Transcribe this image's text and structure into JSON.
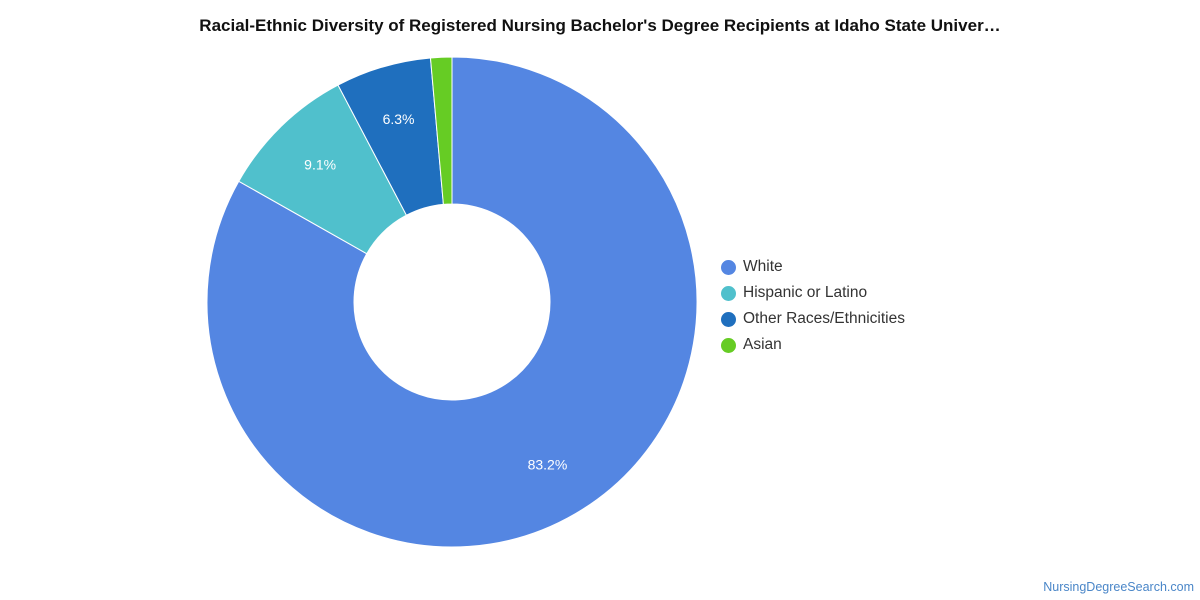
{
  "chart_data": {
    "type": "pie",
    "title": "Racial-Ethnic Diversity of Registered Nursing Bachelor's Degree Recipients at Idaho State Univer…",
    "donut": true,
    "legend_position": "right",
    "categories": [
      "White",
      "Hispanic or Latino",
      "Other Races/Ethnicities",
      "Asian"
    ],
    "values": [
      83.2,
      9.1,
      6.3,
      1.4
    ],
    "data_labels": [
      "83.2%",
      "9.1%",
      "6.3%",
      ""
    ],
    "colors": [
      "#5486e2",
      "#50c0cc",
      "#1f6fbe",
      "#66cc24"
    ]
  },
  "footer": {
    "credit": "NursingDegreeSearch.com"
  }
}
